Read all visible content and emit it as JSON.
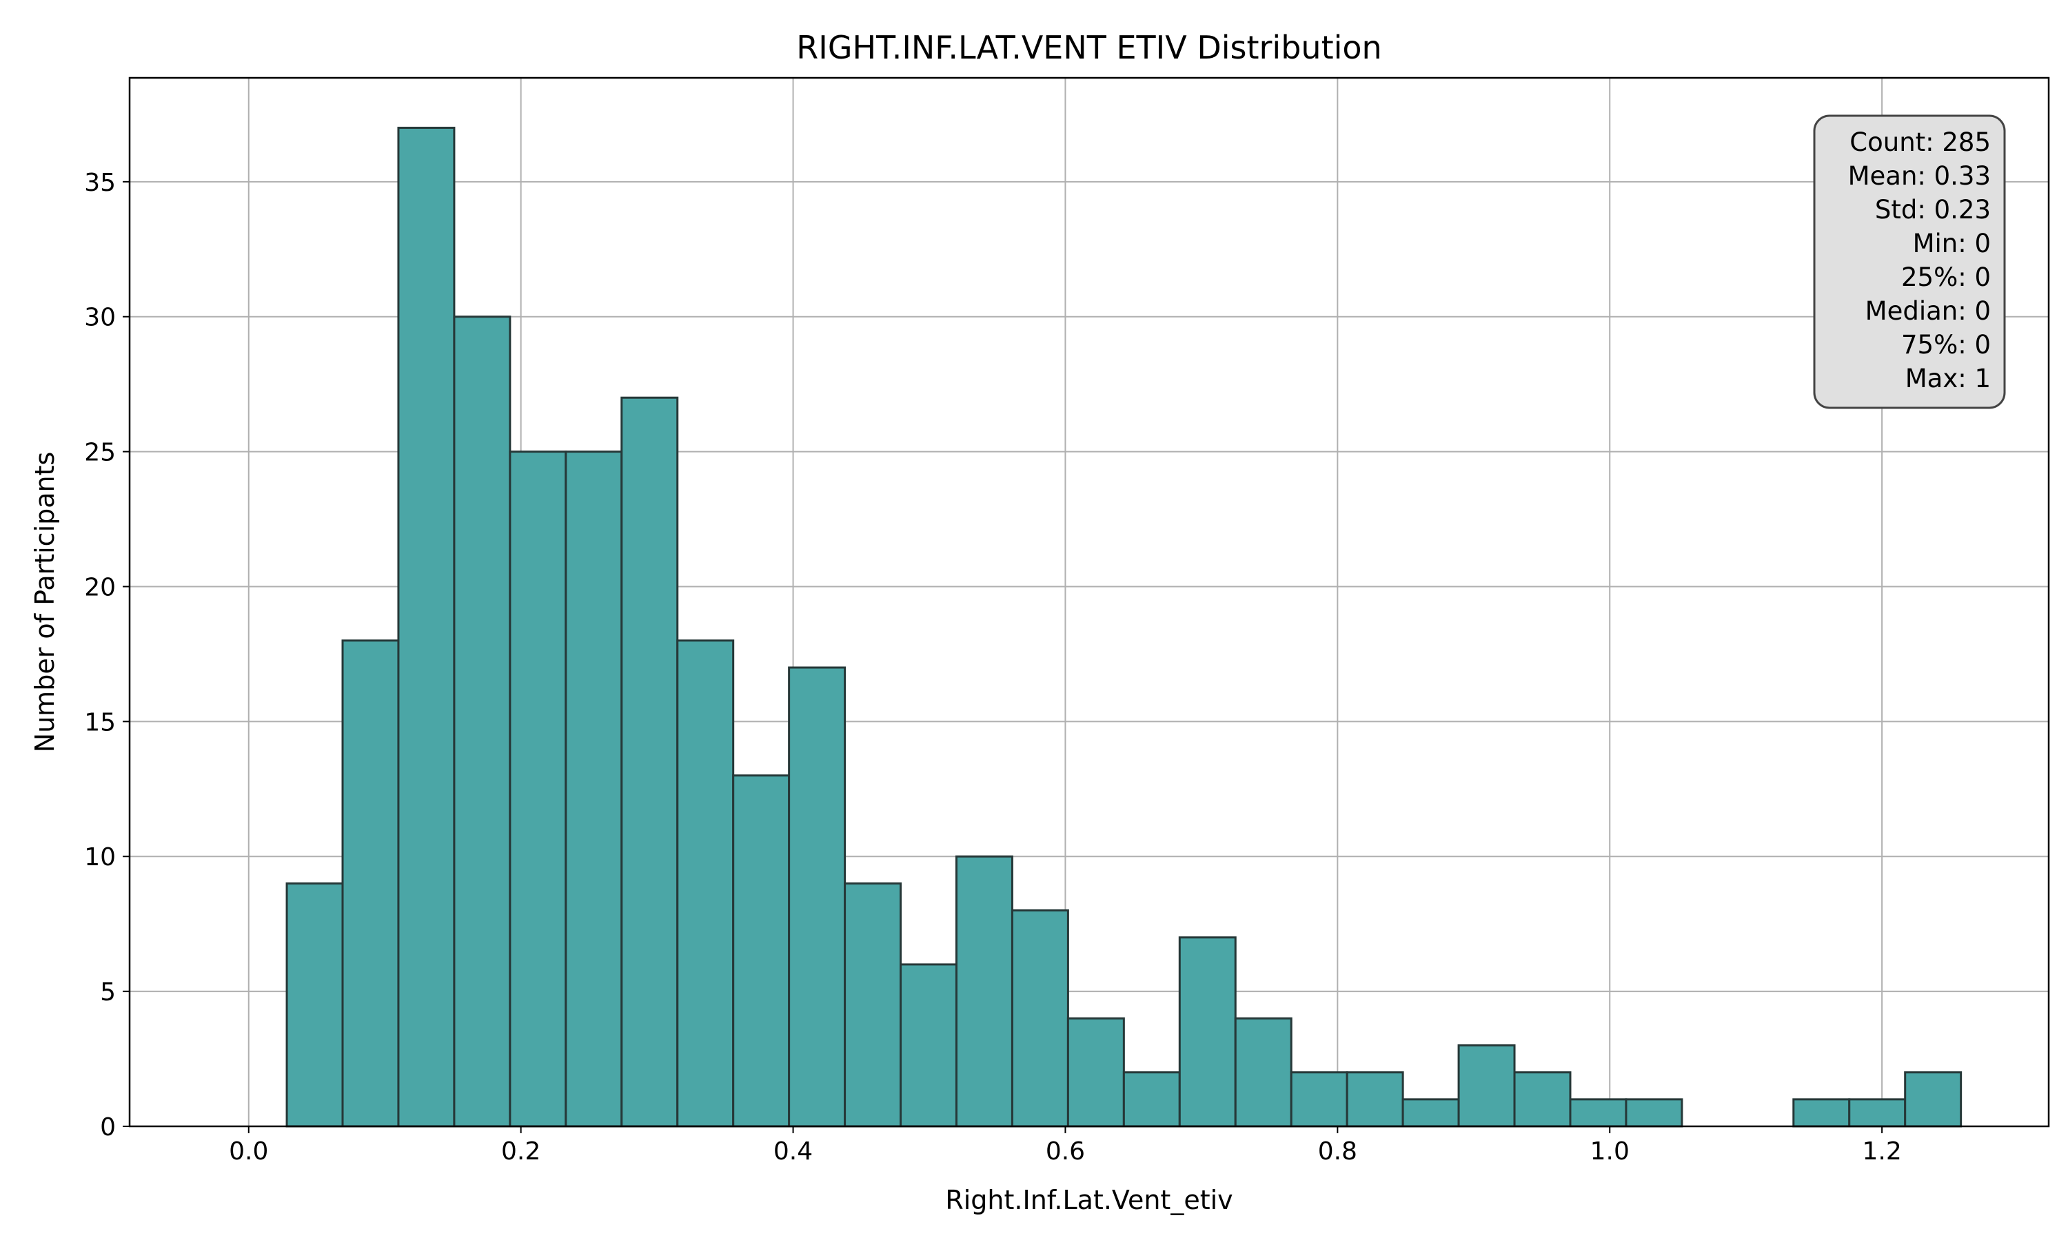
{
  "chart_data": {
    "type": "bar",
    "title": "RIGHT.INF.LAT.VENT ETIV Distribution",
    "xlabel": "Right.Inf.Lat.Vent_etiv",
    "ylabel": "Number of Participants",
    "xlim": [
      -0.0875,
      1.3225
    ],
    "ylim": [
      0,
      38.85
    ],
    "xticks": [
      0.0,
      0.2,
      0.4,
      0.6,
      0.8,
      1.0,
      1.2
    ],
    "xtick_labels": [
      "0.0",
      "0.2",
      "0.4",
      "0.6",
      "0.8",
      "1.0",
      "1.2"
    ],
    "yticks": [
      0,
      5,
      10,
      15,
      20,
      25,
      30,
      35
    ],
    "ytick_labels": [
      "0",
      "5",
      "10",
      "15",
      "20",
      "25",
      "30",
      "35"
    ],
    "grid": true,
    "bin_edges": [
      0.028,
      0.069,
      0.11,
      0.151,
      0.192,
      0.233,
      0.274,
      0.315,
      0.356,
      0.397,
      0.438,
      0.479,
      0.52,
      0.561,
      0.602,
      0.643,
      0.684,
      0.725,
      0.766,
      0.807,
      0.848,
      0.889,
      0.93,
      0.971,
      1.012,
      1.053,
      1.094,
      1.135,
      1.176,
      1.217,
      1.258
    ],
    "values": [
      9,
      18,
      37,
      30,
      25,
      25,
      27,
      18,
      13,
      17,
      9,
      6,
      10,
      8,
      4,
      2,
      7,
      4,
      2,
      2,
      1,
      3,
      2,
      1,
      1,
      0,
      0,
      1,
      1,
      2
    ],
    "colors": {
      "bar_fill": "#4ba6a6",
      "bar_edge": "#263838",
      "grid": "#b0b0b0",
      "stats_box_fill": "#e0e0e0",
      "stats_box_edge": "#444444"
    },
    "stats_box": {
      "position": "top-right",
      "lines": [
        "Count: 285",
        "Mean: 0.33",
        "Std: 0.23",
        "Min: 0",
        "25%: 0",
        "Median: 0",
        "75%: 0",
        "Max: 1"
      ]
    }
  }
}
